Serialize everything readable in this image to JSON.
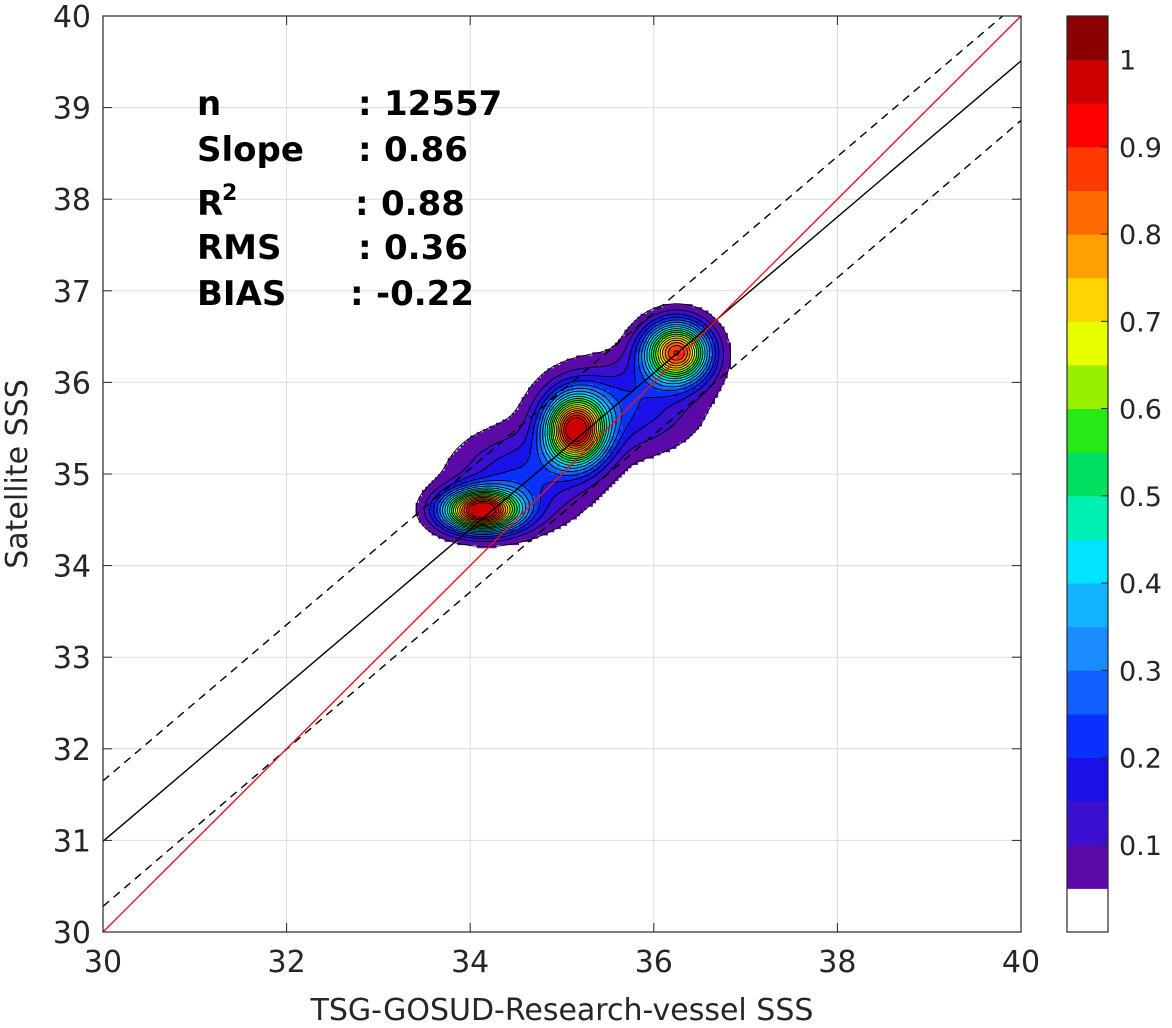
{
  "chart_data": {
    "type": "density-scatter",
    "xlabel": "TSG-GOSUD-Research-vessel SSS",
    "ylabel": "Satellite SSS",
    "xlim": [
      30,
      40
    ],
    "ylim": [
      30,
      40
    ],
    "xticks": [
      "30",
      "32",
      "34",
      "36",
      "38",
      "40"
    ],
    "yticks": [
      "30",
      "31",
      "32",
      "33",
      "34",
      "35",
      "36",
      "37",
      "38",
      "39",
      "40"
    ],
    "grid": true,
    "stats": [
      {
        "label": "n",
        "sep": ":",
        "value": "12557"
      },
      {
        "label": "Slope",
        "sep": ":",
        "value": "0.86"
      },
      {
        "label": "R",
        "sup": "2",
        "sep": ":",
        "value": "0.88"
      },
      {
        "label": "RMS",
        "sep": ":",
        "value": "0.36"
      },
      {
        "label": "BIAS",
        "sep": ":",
        "value": "-0.22"
      }
    ],
    "lines": {
      "identity": {
        "x": [
          30,
          40
        ],
        "y": [
          30,
          40
        ],
        "color": "#e8141e"
      },
      "fit": {
        "x": [
          30,
          40
        ],
        "y": [
          30.99,
          39.51
        ],
        "color": "#000000"
      },
      "fit_upper": {
        "x": [
          30,
          40
        ],
        "y": [
          31.65,
          40.17
        ],
        "color": "#000000",
        "dash": "dashed"
      },
      "fit_lower": {
        "x": [
          30,
          40
        ],
        "y": [
          30.28,
          38.86
        ],
        "color": "#000000",
        "dash": "dashed"
      }
    },
    "density_peaks": [
      {
        "x": 34.12,
        "y": 34.6,
        "sx": 0.28,
        "sy": 0.15,
        "peak": 1.0
      },
      {
        "x": 35.15,
        "y": 35.48,
        "sx": 0.22,
        "sy": 0.25,
        "peak": 0.94
      },
      {
        "x": 36.25,
        "y": 36.33,
        "sx": 0.24,
        "sy": 0.22,
        "peak": 0.88
      },
      {
        "x": 34.55,
        "y": 34.95,
        "sx": 0.5,
        "sy": 0.35,
        "peak": 0.2
      },
      {
        "x": 35.65,
        "y": 35.75,
        "sx": 0.55,
        "sy": 0.35,
        "peak": 0.2
      }
    ],
    "colorbar": {
      "ticks": [
        "0.1",
        "0.2",
        "0.3",
        "0.4",
        "0.5",
        "0.6",
        "0.7",
        "0.8",
        "0.9",
        "1"
      ],
      "levels": [
        0.05,
        0.1,
        0.15,
        0.2,
        0.25,
        0.3,
        0.35,
        0.4,
        0.45,
        0.5,
        0.55,
        0.6,
        0.65,
        0.7,
        0.75,
        0.8,
        0.85,
        0.9,
        0.95
      ],
      "colors": [
        "#ffffff",
        "#5b0aa8",
        "#3a0fcf",
        "#1a10e8",
        "#0a30ff",
        "#1160ff",
        "#1a8cff",
        "#12b4ff",
        "#00e4ff",
        "#00f0b4",
        "#00e060",
        "#28e818",
        "#98f000",
        "#e8ff00",
        "#ffd400",
        "#ffa000",
        "#ff6a00",
        "#ff3a00",
        "#ff0000",
        "#cc0000",
        "#8a0000"
      ]
    }
  }
}
